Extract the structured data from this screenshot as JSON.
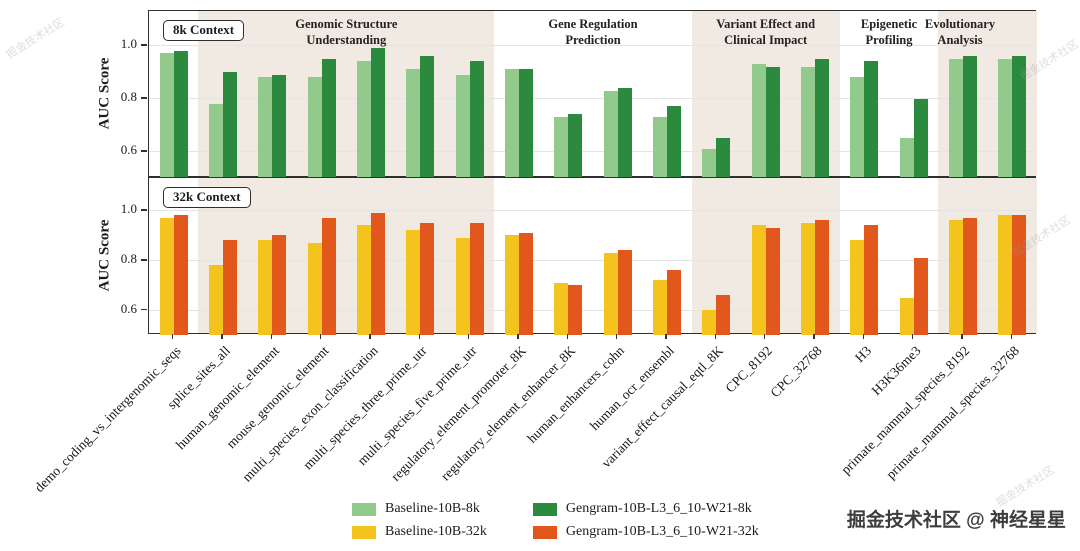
{
  "figure": {
    "attribution": "掘金技术社区 @ 神经星星",
    "watermark": "掘金技术社区"
  },
  "chart_data": {
    "type": "bar",
    "title": "",
    "ylabel": "AUC Score",
    "xlabel": "",
    "ylim": [
      0.5,
      1.13
    ],
    "yticks": [
      0.6,
      0.8,
      1.0
    ],
    "ytick_labels": [
      "0.6",
      "0.8",
      "1.0"
    ],
    "grid": true,
    "legend_position": "bottom-center",
    "categories": [
      "demo_coding_vs_intergenomic_seqs",
      "splice_sites_all",
      "human_genomic_element",
      "mouse_genomic_element",
      "multi_species_exon_classification",
      "multi_species_three_prime_utr",
      "multi_species_five_prime_utr",
      "regulatory_element_promoter_8K",
      "regulatory_element_enhancer_8K",
      "human_enhancers_cohn",
      "human_ocr_ensembl",
      "variant_effect_causal_eqtl_8K",
      "CPC_8192",
      "CPC_32768",
      "H3",
      "H3K36me3",
      "primate_mammal_species_8192",
      "primate_mammal_species_32768"
    ],
    "groups": [
      {
        "label": "Genomic Structure Understanding",
        "lines": [
          "Genomic Structure",
          "Understanding"
        ],
        "start": 1,
        "end": 6,
        "shaded": true
      },
      {
        "label": "Gene Regulation Prediction",
        "lines": [
          "Gene Regulation",
          "Prediction"
        ],
        "start": 7,
        "end": 10,
        "shaded": false
      },
      {
        "label": "Variant Effect and Clinical Impact",
        "lines": [
          "Variant Effect and",
          "Clinical Impact"
        ],
        "start": 11,
        "end": 13,
        "shaded": true
      },
      {
        "label": "Epigenetic Profiling",
        "lines": [
          "Epigenetic",
          "Profiling"
        ],
        "start": 14,
        "end": 15,
        "shaded": false
      },
      {
        "label": "Evolutionary Analysis",
        "lines": [
          "Evolutionary",
          "Analysis"
        ],
        "start": 16,
        "end": 17,
        "shaded": true
      }
    ],
    "panels": [
      {
        "label": "8k Context",
        "series": [
          {
            "name": "Baseline-10B-8k",
            "color": "#92c98c",
            "values": [
              0.97,
              0.78,
              0.88,
              0.88,
              0.94,
              0.91,
              0.89,
              0.91,
              0.73,
              0.83,
              0.73,
              0.61,
              0.93,
              0.92,
              0.88,
              0.65,
              0.95,
              0.95
            ]
          },
          {
            "name": "Gengram-10B-L3_6_10-W21-8k",
            "color": "#2c8a3e",
            "values": [
              0.98,
              0.9,
              0.89,
              0.95,
              0.99,
              0.96,
              0.94,
              0.91,
              0.74,
              0.84,
              0.77,
              0.65,
              0.92,
              0.95,
              0.94,
              0.8,
              0.96,
              0.96
            ]
          }
        ]
      },
      {
        "label": "32k Context",
        "series": [
          {
            "name": "Baseline-10B-32k",
            "color": "#f5c31d",
            "values": [
              0.97,
              0.78,
              0.88,
              0.87,
              0.94,
              0.92,
              0.89,
              0.9,
              0.71,
              0.83,
              0.72,
              0.6,
              0.94,
              0.95,
              0.88,
              0.65,
              0.96,
              0.98
            ]
          },
          {
            "name": "Gengram-10B-L3_6_10-W21-32k",
            "color": "#e2571c",
            "values": [
              0.98,
              0.88,
              0.9,
              0.97,
              0.99,
              0.95,
              0.95,
              0.91,
              0.7,
              0.84,
              0.76,
              0.66,
              0.93,
              0.96,
              0.94,
              0.81,
              0.97,
              0.98
            ]
          }
        ]
      }
    ],
    "legend": [
      {
        "label": "Baseline-10B-8k",
        "color": "#92c98c"
      },
      {
        "label": "Gengram-10B-L3_6_10-W21-8k",
        "color": "#2c8a3e"
      },
      {
        "label": "Baseline-10B-32k",
        "color": "#f5c31d"
      },
      {
        "label": "Gengram-10B-L3_6_10-W21-32k",
        "color": "#e2571c"
      }
    ],
    "colors": {
      "band": "#f1eae2",
      "axis": "#2f2f2f",
      "grid": "#e4e4e4"
    }
  }
}
